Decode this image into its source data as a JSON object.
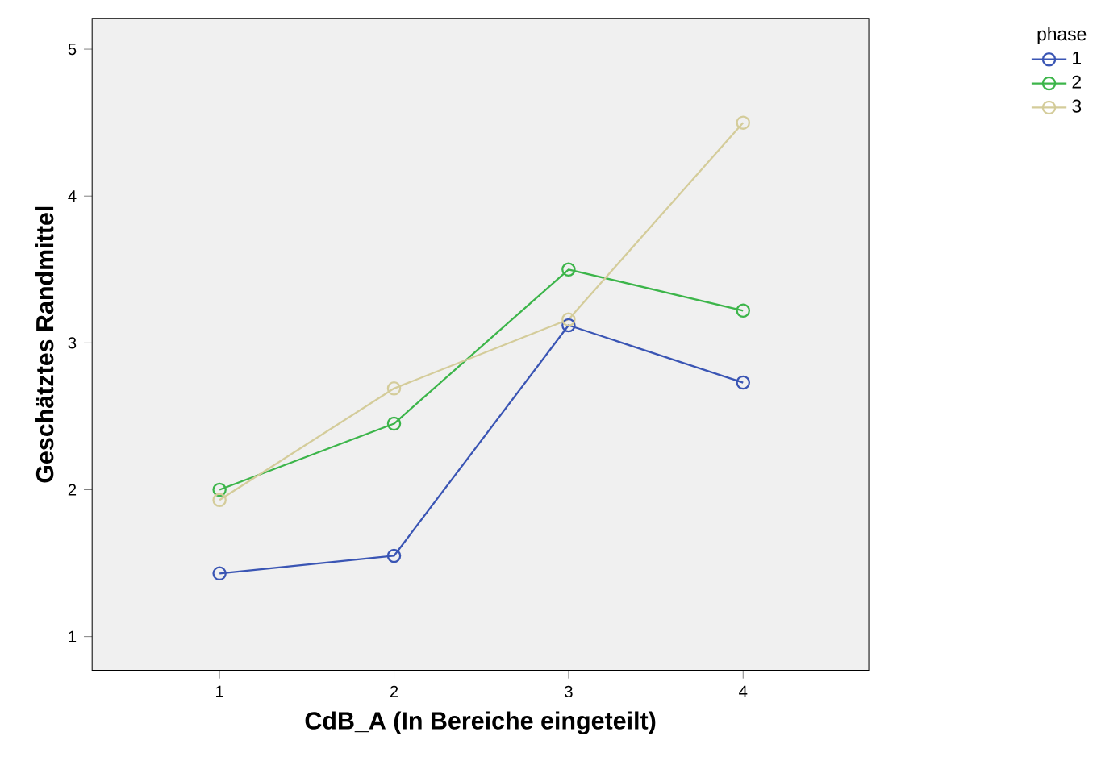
{
  "chart_data": {
    "type": "line",
    "xlabel": "CdB_A (In Bereiche eingeteilt)",
    "ylabel": "Geschätztes Randmittel",
    "legend_title": "phase",
    "legend": "top right",
    "marker": "circle",
    "line_style": "solid",
    "grid": false,
    "x": [
      1,
      2,
      3,
      4
    ],
    "xlim": [
      0.27,
      4.72
    ],
    "xticks": [
      1,
      2,
      3,
      4
    ],
    "ylim": [
      0.77,
      5.21
    ],
    "yticks": [
      1,
      2,
      3,
      4,
      5
    ],
    "series": [
      {
        "name": "1",
        "color": "#3a55b4",
        "values": [
          1.43,
          1.55,
          3.12,
          2.73
        ]
      },
      {
        "name": "2",
        "color": "#3cb54a",
        "values": [
          2.0,
          2.45,
          3.5,
          3.22
        ]
      },
      {
        "name": "3",
        "color": "#d4cc9a",
        "values": [
          1.93,
          2.69,
          3.16,
          4.5
        ]
      }
    ]
  }
}
